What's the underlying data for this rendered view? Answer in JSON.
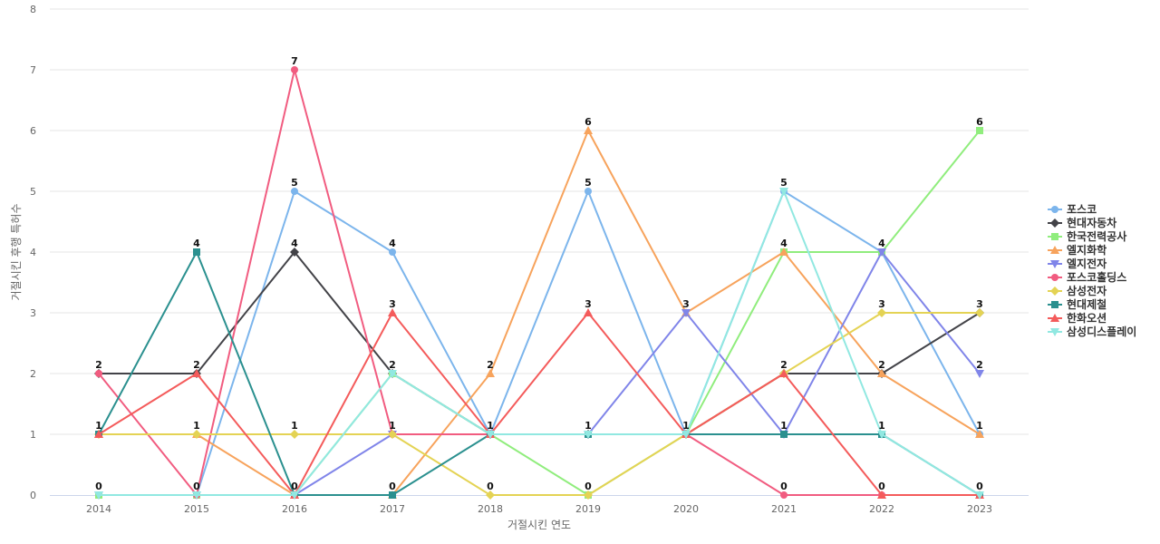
{
  "chart_data": {
    "type": "line",
    "xlabel": "거절시킨 연도",
    "ylabel": "거절시킨 후행 특허수",
    "ylim": [
      0,
      8
    ],
    "yticks": [
      0,
      1,
      2,
      3,
      4,
      5,
      6,
      7,
      8
    ],
    "categories": [
      "2014",
      "2015",
      "2016",
      "2017",
      "2018",
      "2019",
      "2020",
      "2021",
      "2022",
      "2023"
    ],
    "grid": true,
    "legend_position": "right",
    "series": [
      {
        "name": "포스코",
        "color": "#7cb5ec",
        "marker": "circle",
        "values": [
          0,
          0,
          5,
          4,
          1,
          5,
          1,
          5,
          4,
          1
        ]
      },
      {
        "name": "현대자동차",
        "color": "#434348",
        "marker": "diamond",
        "values": [
          2,
          2,
          4,
          2,
          1,
          1,
          1,
          2,
          2,
          3
        ]
      },
      {
        "name": "한국전력공사",
        "color": "#90ed7d",
        "marker": "square",
        "values": [
          0,
          0,
          0,
          2,
          1,
          0,
          1,
          4,
          4,
          6
        ]
      },
      {
        "name": "엘지화학",
        "color": "#f7a35c",
        "marker": "triangle",
        "values": [
          1,
          1,
          0,
          0,
          2,
          6,
          3,
          4,
          2,
          1
        ]
      },
      {
        "name": "엘지전자",
        "color": "#8085e9",
        "marker": "triangle-down",
        "values": [
          0,
          0,
          0,
          1,
          1,
          1,
          3,
          1,
          4,
          2
        ]
      },
      {
        "name": "포스코홀딩스",
        "color": "#f15c80",
        "marker": "circle",
        "values": [
          2,
          0,
          7,
          1,
          1,
          1,
          1,
          0,
          0,
          0
        ]
      },
      {
        "name": "삼성전자",
        "color": "#e4d354",
        "marker": "diamond",
        "values": [
          1,
          1,
          1,
          1,
          0,
          0,
          1,
          2,
          3,
          3
        ]
      },
      {
        "name": "현대제철",
        "color": "#2b908f",
        "marker": "square",
        "values": [
          1,
          4,
          0,
          0,
          1,
          1,
          1,
          1,
          1,
          0
        ]
      },
      {
        "name": "한화오션",
        "color": "#f45b5b",
        "marker": "triangle",
        "values": [
          1,
          2,
          0,
          3,
          1,
          3,
          1,
          2,
          0,
          0
        ]
      },
      {
        "name": "삼성디스플레이",
        "color": "#91e8e1",
        "marker": "triangle-down",
        "values": [
          0,
          0,
          0,
          2,
          1,
          1,
          1,
          5,
          1,
          0
        ]
      }
    ],
    "point_labels": [
      {
        "x": "2014",
        "values": [
          2,
          1,
          0
        ]
      },
      {
        "x": "2015",
        "values": [
          4,
          2,
          1,
          0
        ]
      },
      {
        "x": "2016",
        "values": [
          7,
          5,
          4,
          1,
          0
        ]
      },
      {
        "x": "2017",
        "values": [
          4,
          3,
          2,
          1,
          0
        ]
      },
      {
        "x": "2018",
        "values": [
          2,
          1,
          0
        ]
      },
      {
        "x": "2019",
        "values": [
          6,
          5,
          3,
          1,
          0
        ]
      },
      {
        "x": "2020",
        "values": [
          3,
          1
        ]
      },
      {
        "x": "2021",
        "values": [
          5,
          4,
          2,
          1,
          0
        ]
      },
      {
        "x": "2022",
        "values": [
          4,
          3,
          2,
          1,
          0
        ]
      },
      {
        "x": "2023",
        "values": [
          6,
          3,
          2,
          1,
          0
        ]
      }
    ]
  }
}
